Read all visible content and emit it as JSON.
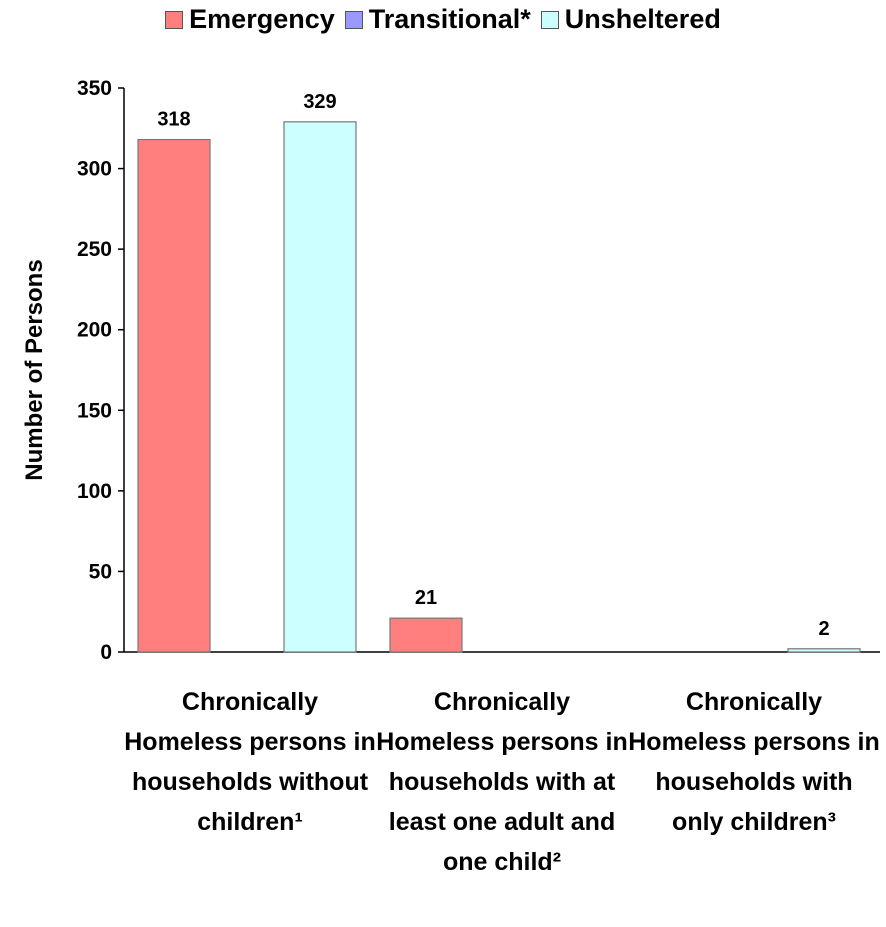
{
  "chart_data": {
    "type": "bar",
    "ylabel": "Number of Persons",
    "ylim": [
      0,
      350
    ],
    "yticks": [
      0,
      50,
      100,
      150,
      200,
      250,
      300,
      350
    ],
    "categories": [
      "Chronically Homeless persons in households without children¹",
      "Chronically Homeless persons in households with at least one adult and one child²",
      "Chronically Homeless persons in households with only children³"
    ],
    "series": [
      {
        "name": "Emergency",
        "color": "#ff7f7f",
        "values": [
          318,
          21,
          0
        ],
        "labels": [
          "318",
          "21",
          ""
        ]
      },
      {
        "name": "Transitional*",
        "color": "#9999ff",
        "values": [
          0,
          0,
          0
        ],
        "labels": [
          "",
          "",
          ""
        ]
      },
      {
        "name": "Unsheltered",
        "color": "#ccffff",
        "values": [
          329,
          0,
          2
        ],
        "labels": [
          "329",
          "",
          "2"
        ]
      }
    ],
    "legend_position": "top",
    "grid": false
  }
}
